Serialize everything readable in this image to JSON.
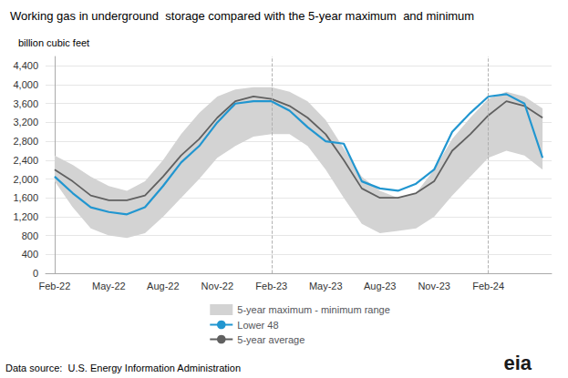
{
  "chart_data": {
    "type": "line",
    "title": "Working gas in underground  storage compared with the 5-year maximum  and minimum",
    "ylabel": "billion cubic feet",
    "source": "Data source:  U.S. Energy Information Administration",
    "x": [
      0,
      1,
      2,
      3,
      4,
      5,
      6,
      7,
      8,
      9,
      10,
      11,
      12,
      13,
      14,
      15,
      16,
      17,
      18,
      19,
      20,
      21,
      22,
      23,
      24,
      25,
      26,
      27
    ],
    "xlim": [
      -0.5,
      27.5
    ],
    "xticks": [
      {
        "value": 0,
        "label": "Feb-22"
      },
      {
        "value": 3,
        "label": "May-22"
      },
      {
        "value": 6,
        "label": "Aug-22"
      },
      {
        "value": 9,
        "label": "Nov-22"
      },
      {
        "value": 12,
        "label": "Feb-23"
      },
      {
        "value": 15,
        "label": "May-23"
      },
      {
        "value": 18,
        "label": "Aug-23"
      },
      {
        "value": 21,
        "label": "Nov-23"
      },
      {
        "value": 24,
        "label": "Feb-24"
      }
    ],
    "ylim": [
      0,
      4600
    ],
    "yticks": [
      0,
      400,
      800,
      {
        "value": 1200,
        "label": "1,200"
      },
      {
        "value": 1600,
        "label": "1,600"
      },
      {
        "value": 2000,
        "label": "2,000"
      },
      {
        "value": 2400,
        "label": "2,400"
      },
      {
        "value": 2800,
        "label": "2,800"
      },
      {
        "value": 3200,
        "label": "3,200"
      },
      {
        "value": 3600,
        "label": "3,600"
      },
      {
        "value": 4000,
        "label": "4,000"
      },
      {
        "value": 4400,
        "label": "4,400"
      }
    ],
    "grid": true,
    "legend": "bottom",
    "series": [
      {
        "name": "5-year maximum - minimum range",
        "type": "band",
        "color": "#d3d3d3",
        "max": [
          2500,
          2300,
          2050,
          1850,
          1750,
          1950,
          2400,
          2950,
          3400,
          3750,
          3900,
          3950,
          3950,
          3850,
          3650,
          3250,
          2650,
          2050,
          1750,
          1600,
          1700,
          2200,
          2850,
          3300,
          3700,
          3850,
          3750,
          3500
        ],
        "min": [
          1950,
          1400,
          950,
          800,
          750,
          850,
          1200,
          1600,
          2000,
          2450,
          2700,
          2900,
          2950,
          2950,
          2700,
          2200,
          1600,
          1050,
          850,
          900,
          950,
          1200,
          1650,
          2050,
          2450,
          2600,
          2500,
          2200
        ]
      },
      {
        "name": "Lower 48",
        "type": "line",
        "color": "#2196d0",
        "values": [
          2050,
          1700,
          1400,
          1300,
          1250,
          1400,
          1850,
          2350,
          2700,
          3200,
          3600,
          3650,
          3650,
          3450,
          3100,
          2800,
          2750,
          1950,
          1800,
          1750,
          1900,
          2200,
          3000,
          3400,
          3750,
          3800,
          3600,
          2450
        ]
      },
      {
        "name": "5-year average",
        "type": "line",
        "color": "#606060",
        "values": [
          2200,
          1950,
          1650,
          1550,
          1550,
          1650,
          2050,
          2500,
          2850,
          3300,
          3650,
          3750,
          3700,
          3550,
          3300,
          2950,
          2400,
          1800,
          1600,
          1600,
          1700,
          1950,
          2600,
          2950,
          3350,
          3650,
          3550,
          3300
        ]
      }
    ],
    "annotations": [
      {
        "text": "eia"
      },
      {
        "x": 12,
        "line_style": "dashed"
      },
      {
        "x": 24,
        "line_style": "dashed"
      }
    ]
  }
}
